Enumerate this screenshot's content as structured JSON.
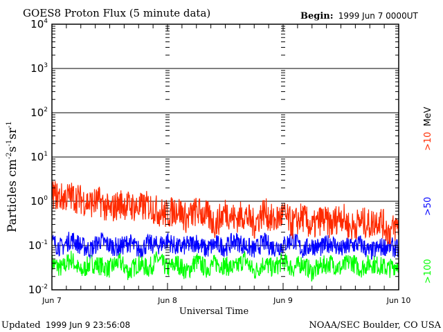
{
  "chart_data": {
    "type": "line",
    "title": "GOES8 Proton Flux (5 minute data)",
    "begin_label": "Begin:",
    "begin_value": "1999 Jun 7 0000UT",
    "xlabel": "Universal Time",
    "ylabel_main": "Particles cm",
    "ylabel_parts": [
      "-2",
      "s",
      "-1",
      "sr",
      "-1"
    ],
    "yscale": "log",
    "ylim": [
      0.01,
      10000
    ],
    "y_ticks": [
      {
        "exp": "4"
      },
      {
        "exp": "3"
      },
      {
        "exp": "2"
      },
      {
        "exp": "1"
      },
      {
        "exp": "0"
      },
      {
        "exp": "-1"
      },
      {
        "exp": "-2"
      }
    ],
    "y_tick_base": "10",
    "x_hours_range": [
      0,
      72
    ],
    "x_tick_labels": [
      "Jun 7",
      "Jun 8",
      "Jun 9",
      "Jun 10"
    ],
    "x_step_hours": 2,
    "grid": true,
    "series": [
      {
        "name": ">10 MeV",
        "label": ">10",
        "unit": "MeV",
        "color": "#ff2a00",
        "values": [
          1.5,
          1.2,
          1.3,
          1.1,
          0.9,
          1.0,
          0.6,
          0.9,
          0.8,
          0.7,
          0.8,
          0.6,
          0.5,
          0.7,
          0.4,
          0.6,
          0.5,
          0.3,
          0.6,
          0.4,
          0.5,
          0.3,
          0.6,
          0.35,
          0.5,
          0.3,
          0.45,
          0.25,
          0.4,
          0.3,
          0.5,
          0.25,
          0.35,
          0.3,
          0.4,
          0.2,
          0.3
        ]
      },
      {
        "name": ">50 MeV",
        "label": ">50",
        "color": "#0000ff",
        "values": [
          0.12,
          0.09,
          0.14,
          0.1,
          0.08,
          0.13,
          0.1,
          0.09,
          0.12,
          0.08,
          0.11,
          0.1,
          0.13,
          0.09,
          0.1,
          0.12,
          0.08,
          0.11,
          0.09,
          0.13,
          0.1,
          0.08,
          0.12,
          0.09,
          0.1,
          0.14,
          0.08,
          0.1,
          0.09,
          0.12,
          0.08,
          0.1,
          0.11,
          0.07,
          0.09,
          0.1,
          0.08
        ]
      },
      {
        "name": ">100 MeV",
        "label": ">100",
        "color": "#00ff00",
        "values": [
          0.04,
          0.03,
          0.05,
          0.025,
          0.04,
          0.035,
          0.03,
          0.045,
          0.025,
          0.04,
          0.03,
          0.05,
          0.03,
          0.04,
          0.025,
          0.045,
          0.03,
          0.04,
          0.035,
          0.03,
          0.05,
          0.025,
          0.04,
          0.03,
          0.045,
          0.03,
          0.04,
          0.025,
          0.035,
          0.04,
          0.03,
          0.045,
          0.03,
          0.04,
          0.035,
          0.03,
          0.04
        ]
      }
    ]
  },
  "footer": {
    "updated_label": "Updated",
    "updated_value": "1999 Jun  9 23:56:08",
    "credit": "NOAA/SEC Boulder, CO USA"
  }
}
